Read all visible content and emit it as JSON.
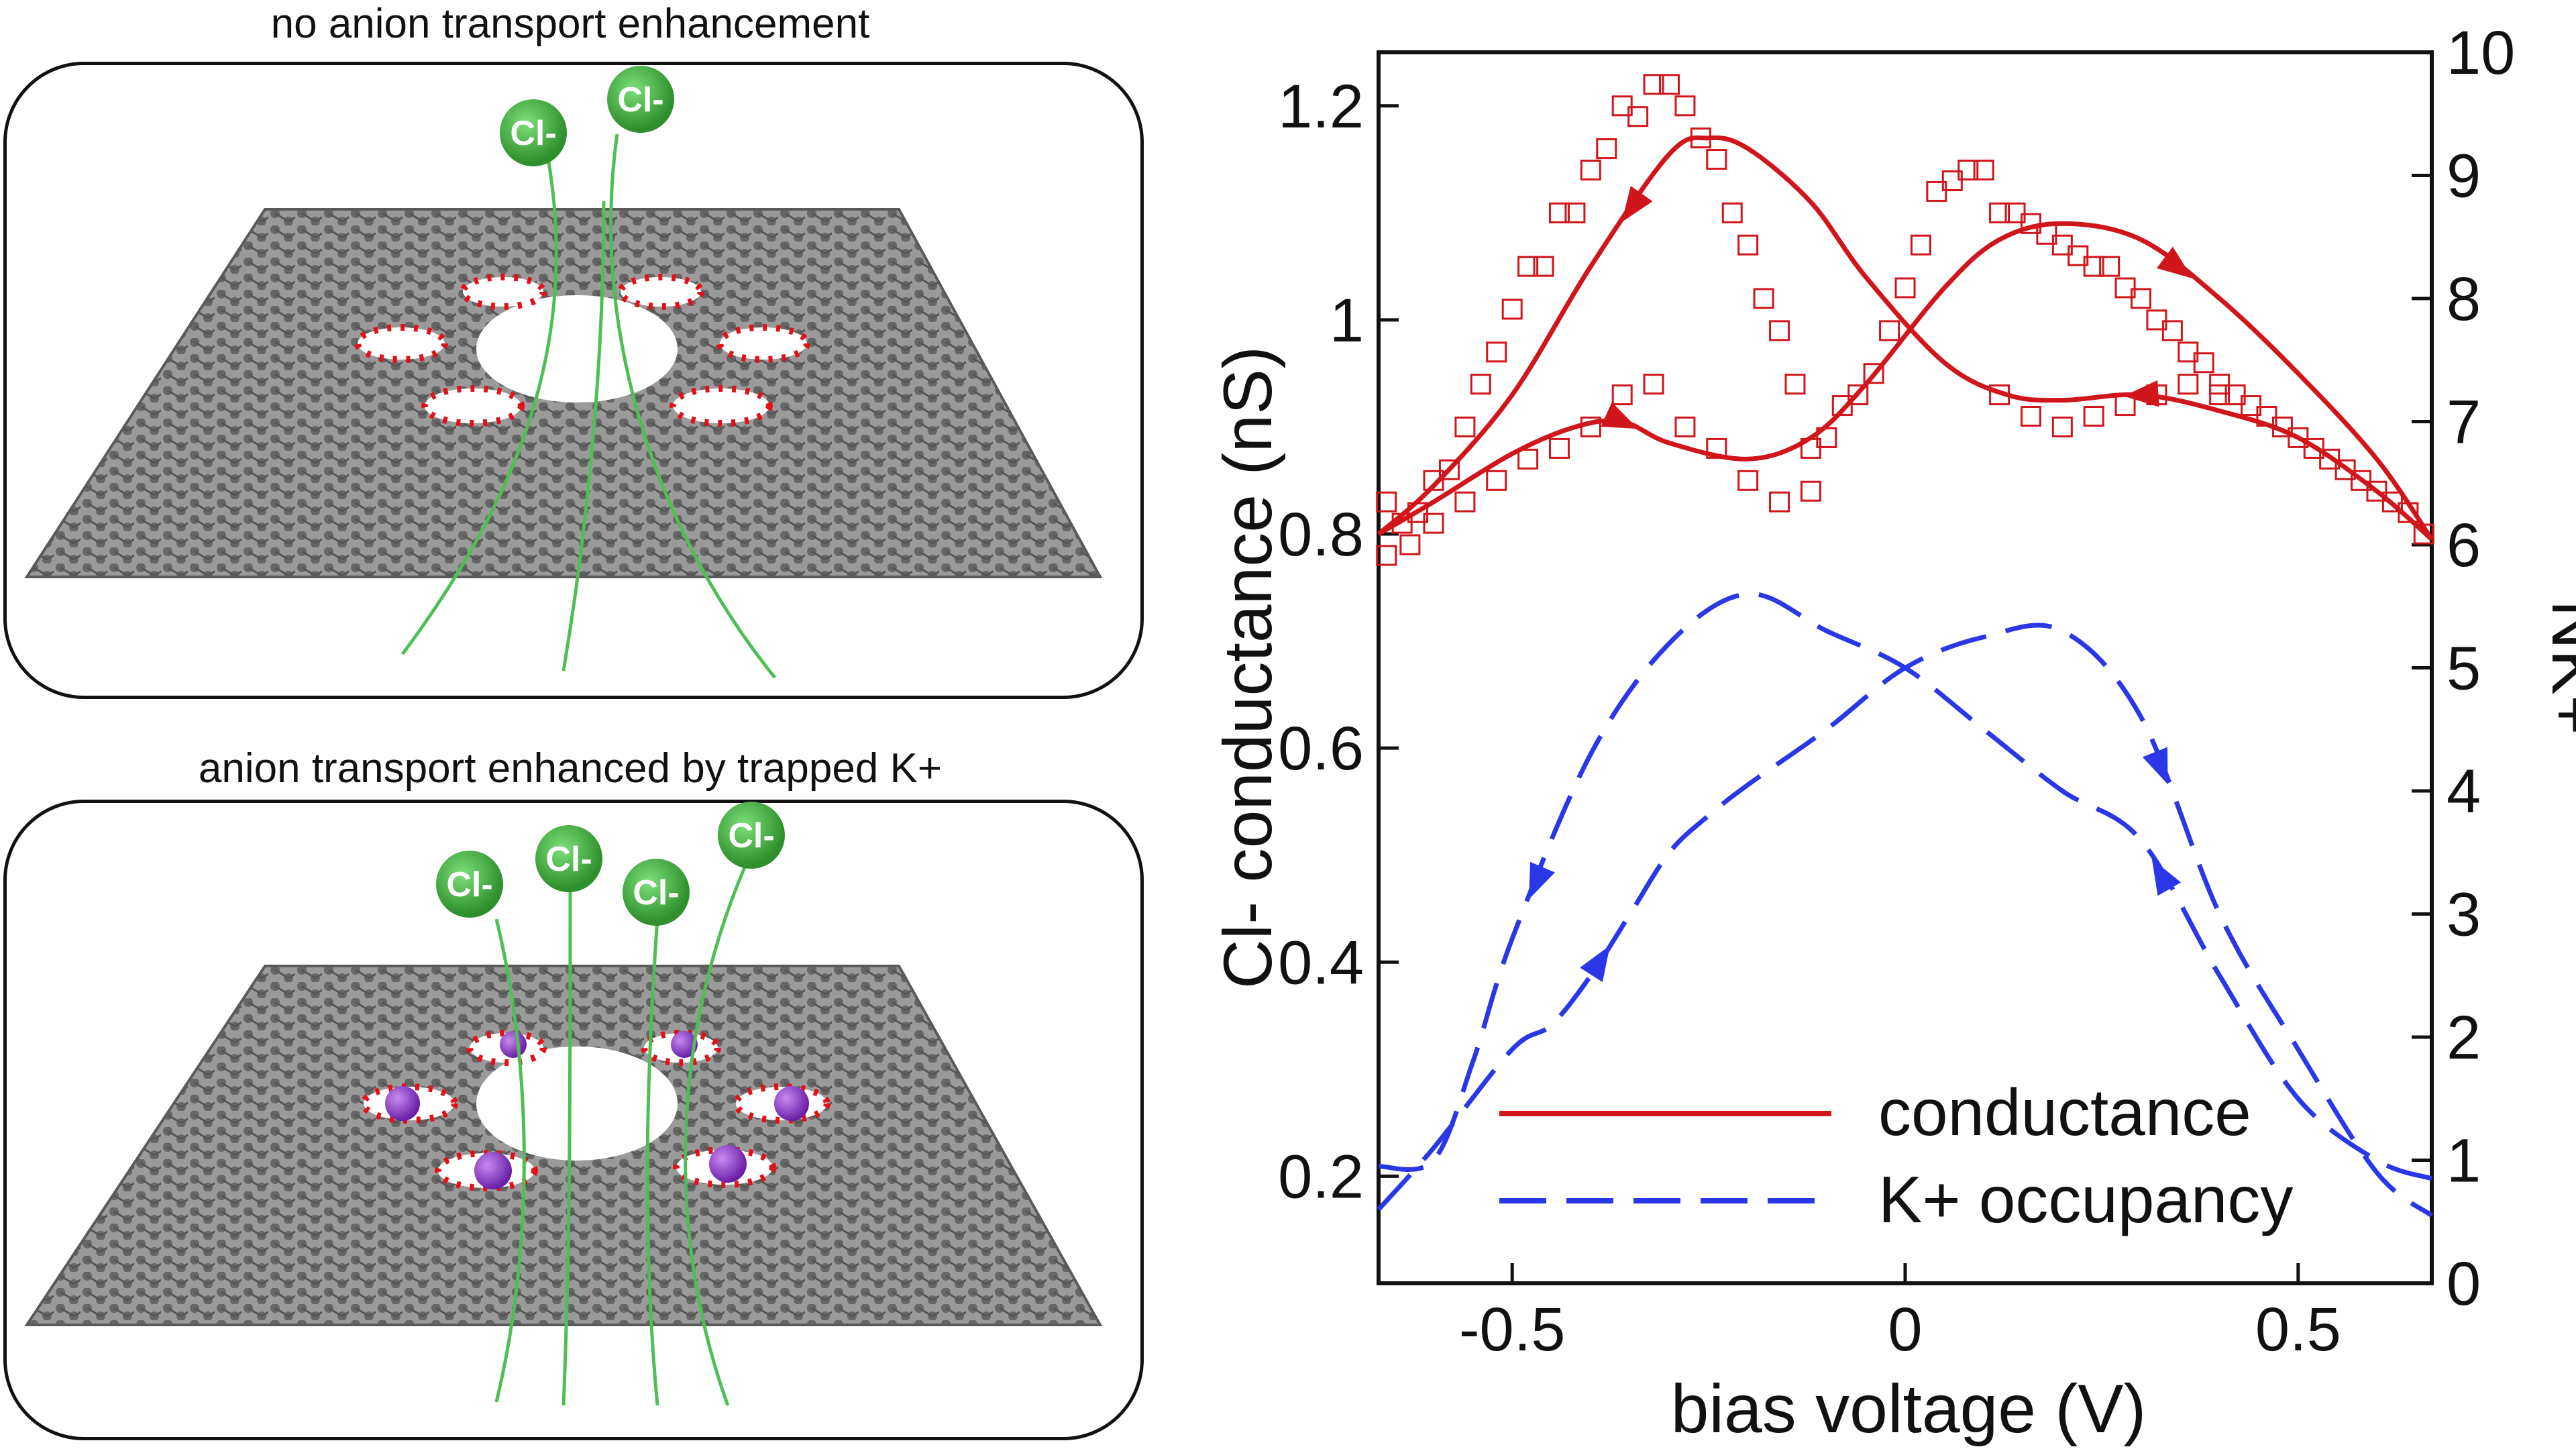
{
  "panels": {
    "top": {
      "title": "no anion transport enhancement",
      "ion_labels": [
        "Cl-",
        "Cl-"
      ]
    },
    "bottom": {
      "title": "anion transport enhanced by trapped K+",
      "ion_labels": [
        "Cl-",
        "Cl-",
        "Cl-",
        "Cl-"
      ]
    }
  },
  "colors": {
    "conductance": "#d0151b",
    "occupancy": "#2a37e6",
    "carbon": "#6e6e6e",
    "oxygen": "#e3101a",
    "potassium": "#8a2fc8",
    "chloride": "#3daa3a",
    "flow": "#4fbf55"
  },
  "chart_data": {
    "type": "line",
    "xlabel": "bias voltage (V)",
    "ylabel": "Cl- conductance (nS)",
    "y2label": "NK+",
    "xlim": [
      -0.67,
      0.67
    ],
    "ylim": [
      0.1,
      1.25
    ],
    "y2lim": [
      0,
      10
    ],
    "xticks": [
      -0.5,
      0,
      0.5
    ],
    "xtick_labels": [
      "-0.5",
      "0",
      "0.5"
    ],
    "yticks": [
      0.2,
      0.4,
      0.6,
      0.8,
      1.0,
      1.2
    ],
    "ytick_labels": [
      "0.2",
      "0.4",
      "0.6",
      "0.8",
      "1",
      "1.2"
    ],
    "y2ticks": [
      0,
      1,
      2,
      3,
      4,
      5,
      6,
      7,
      8,
      9,
      10
    ],
    "y2tick_labels": [
      "0",
      "1",
      "2",
      "3",
      "4",
      "5",
      "6",
      "7",
      "8",
      "9",
      "10"
    ],
    "legend": {
      "position": "bottom-center",
      "entries": [
        "conductance",
        "K+ occupancy"
      ]
    },
    "series": [
      {
        "name": "conductance (sweep up)",
        "axis": "left",
        "style": "solid",
        "x": [
          -0.67,
          -0.6,
          -0.5,
          -0.42,
          -0.36,
          -0.3,
          -0.2,
          -0.12,
          -0.05,
          0.05,
          0.12,
          0.2,
          0.3,
          0.4,
          0.5,
          0.6,
          0.67
        ],
        "y": [
          0.8,
          0.83,
          0.875,
          0.9,
          0.905,
          0.885,
          0.87,
          0.89,
          0.94,
          1.03,
          1.075,
          1.09,
          1.075,
          1.02,
          0.95,
          0.87,
          0.795
        ]
      },
      {
        "name": "conductance (sweep down)",
        "axis": "left",
        "style": "solid",
        "x": [
          0.67,
          0.6,
          0.5,
          0.4,
          0.3,
          0.2,
          0.13,
          0.05,
          -0.05,
          -0.12,
          -0.2,
          -0.25,
          -0.3,
          -0.4,
          -0.5,
          -0.6,
          -0.67
        ],
        "y": [
          0.795,
          0.84,
          0.89,
          0.915,
          0.93,
          0.925,
          0.93,
          0.96,
          1.04,
          1.11,
          1.16,
          1.17,
          1.155,
          1.05,
          0.93,
          0.845,
          0.8
        ]
      },
      {
        "name": "conductance data",
        "axis": "left",
        "style": "markers",
        "x": [
          -0.66,
          -0.64,
          -0.62,
          -0.6,
          -0.58,
          -0.56,
          -0.54,
          -0.52,
          -0.5,
          -0.48,
          -0.46,
          -0.44,
          -0.42,
          -0.4,
          -0.38,
          -0.36,
          -0.34,
          -0.32,
          -0.3,
          -0.28,
          -0.26,
          -0.24,
          -0.22,
          -0.2,
          -0.18,
          -0.16,
          -0.14,
          -0.12,
          -0.1,
          -0.08,
          -0.06,
          -0.04,
          -0.02,
          0.0,
          0.02,
          0.04,
          0.06,
          0.08,
          0.1,
          0.12,
          0.14,
          0.16,
          0.18,
          0.2,
          0.22,
          0.24,
          0.26,
          0.28,
          0.3,
          0.32,
          0.34,
          0.36,
          0.38,
          0.4,
          0.42,
          0.44,
          0.46,
          0.48,
          0.5,
          0.52,
          0.54,
          0.56,
          0.58,
          0.6,
          0.62,
          0.64,
          0.66
        ],
        "y": [
          0.83,
          0.81,
          0.82,
          0.85,
          0.86,
          0.9,
          0.94,
          0.97,
          1.01,
          1.05,
          1.05,
          1.1,
          1.1,
          1.14,
          1.16,
          1.2,
          1.19,
          1.22,
          1.22,
          1.2,
          1.17,
          1.15,
          1.1,
          1.07,
          1.02,
          0.99,
          0.94,
          0.88,
          0.89,
          0.92,
          0.93,
          0.95,
          0.99,
          1.03,
          1.07,
          1.12,
          1.13,
          1.14,
          1.14,
          1.1,
          1.1,
          1.09,
          1.08,
          1.07,
          1.06,
          1.05,
          1.05,
          1.03,
          1.02,
          1.0,
          0.99,
          0.97,
          0.96,
          0.94,
          0.93,
          0.92,
          0.91,
          0.9,
          0.89,
          0.88,
          0.87,
          0.86,
          0.85,
          0.84,
          0.83,
          0.82,
          0.8
        ]
      },
      {
        "name": "conductance data (return)",
        "axis": "left",
        "style": "markers",
        "x": [
          -0.66,
          -0.63,
          -0.6,
          -0.56,
          -0.52,
          -0.48,
          -0.44,
          -0.4,
          -0.36,
          -0.32,
          -0.28,
          -0.24,
          -0.2,
          -0.16,
          -0.12,
          0.12,
          0.16,
          0.2,
          0.24,
          0.28,
          0.32,
          0.36,
          0.4
        ],
        "y": [
          0.78,
          0.79,
          0.81,
          0.83,
          0.85,
          0.87,
          0.88,
          0.9,
          0.93,
          0.94,
          0.9,
          0.88,
          0.85,
          0.83,
          0.84,
          0.93,
          0.91,
          0.9,
          0.91,
          0.92,
          0.93,
          0.94,
          0.93
        ]
      },
      {
        "name": "K+ occupancy (sweep up)",
        "axis": "right",
        "style": "dashed",
        "x": [
          -0.67,
          -0.6,
          -0.5,
          -0.45,
          -0.4,
          -0.35,
          -0.3,
          -0.25,
          -0.2,
          -0.1,
          0.0,
          0.1,
          0.2,
          0.3,
          0.4,
          0.5,
          0.6,
          0.67
        ],
        "y": [
          0.6,
          1.1,
          1.9,
          2.1,
          2.5,
          3.0,
          3.5,
          3.8,
          4.05,
          4.5,
          5.0,
          5.25,
          5.3,
          4.6,
          3.0,
          1.9,
          0.9,
          0.55
        ]
      },
      {
        "name": "K+ occupancy (sweep down)",
        "axis": "right",
        "style": "dashed",
        "x": [
          0.67,
          0.6,
          0.5,
          0.4,
          0.3,
          0.2,
          0.1,
          0.0,
          -0.1,
          -0.2,
          -0.3,
          -0.4,
          -0.5,
          -0.55,
          -0.6,
          -0.67
        ],
        "y": [
          0.85,
          1.0,
          1.5,
          2.5,
          3.6,
          4.0,
          4.5,
          5.0,
          5.3,
          5.6,
          5.2,
          4.3,
          2.8,
          1.8,
          1.0,
          0.95
        ]
      }
    ]
  }
}
